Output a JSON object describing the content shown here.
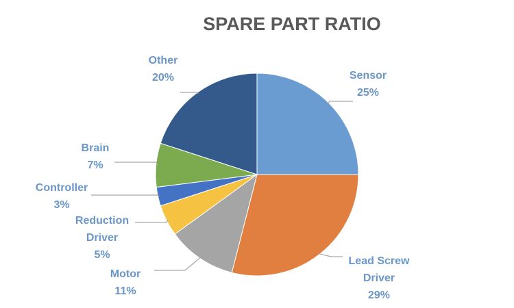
{
  "chart_data": {
    "type": "pie",
    "title": "SPARE PART RATIO",
    "slices": [
      {
        "category": "Sensor",
        "label_lines": [
          "Sensor"
        ],
        "value": 25,
        "value_label": "25%",
        "color": "#6a9bd1"
      },
      {
        "category": "Lead Screw Driver",
        "label_lines": [
          "Lead Screw",
          "Driver"
        ],
        "value": 29,
        "value_label": "29%",
        "color": "#e07f3f"
      },
      {
        "category": "Motor",
        "label_lines": [
          "Motor"
        ],
        "value": 11,
        "value_label": "11%",
        "color": "#a5a5a5"
      },
      {
        "category": "Reduction Driver",
        "label_lines": [
          "Reduction",
          "Driver"
        ],
        "value": 5,
        "value_label": "5%",
        "color": "#f5c242"
      },
      {
        "category": "Controller",
        "label_lines": [
          "Controller"
        ],
        "value": 3,
        "value_label": "3%",
        "color": "#4472c4"
      },
      {
        "category": "Brain",
        "label_lines": [
          "Brain"
        ],
        "value": 7,
        "value_label": "7%",
        "color": "#7cab4f"
      },
      {
        "category": "Other",
        "label_lines": [
          "Other"
        ],
        "value": 20,
        "value_label": "20%",
        "color": "#335a8a"
      }
    ],
    "legend": "none",
    "label_color": "#6a96c8"
  }
}
